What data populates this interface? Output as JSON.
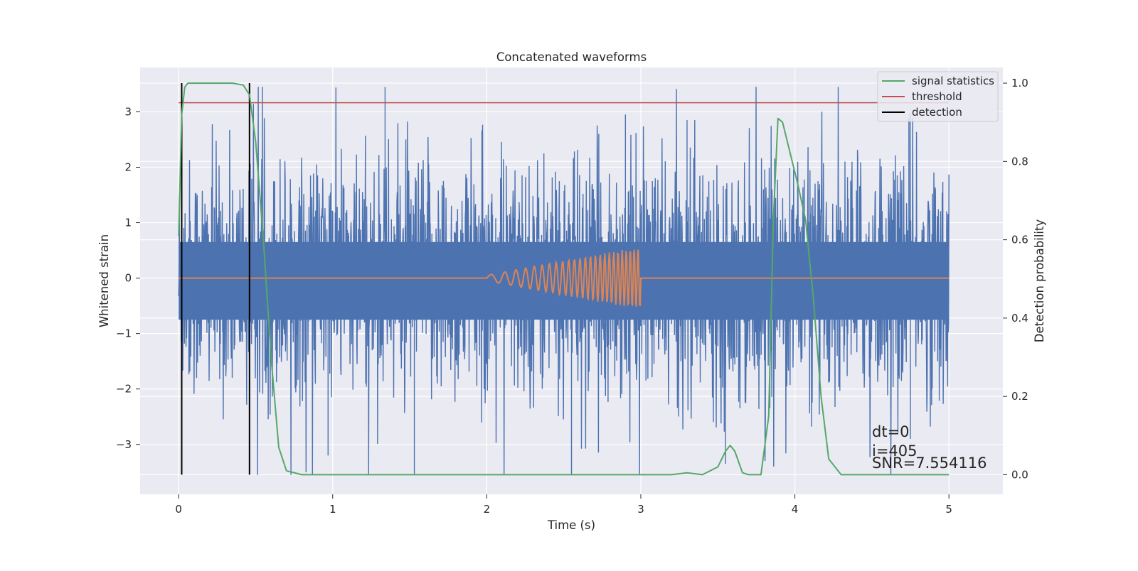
{
  "chart_data": {
    "type": "line",
    "title": "Concatenated waveforms",
    "xlabel": "Time (s)",
    "ylabel_left": "Whitened strain",
    "ylabel_right": "Detection probability",
    "xlim": [
      -0.25,
      5.35
    ],
    "ylim_left": [
      -3.9,
      3.8
    ],
    "ylim_right": [
      -0.05,
      1.04
    ],
    "x_ticks": [
      0,
      1,
      2,
      3,
      4,
      5
    ],
    "x_tick_labels": [
      "0",
      "1",
      "2",
      "3",
      "4",
      "5"
    ],
    "y_left_ticks": [
      -3,
      -2,
      -1,
      0,
      1,
      2,
      3
    ],
    "y_left_tick_labels": [
      "−3",
      "−2",
      "−1",
      "0",
      "1",
      "2",
      "3"
    ],
    "y_right_ticks": [
      0.0,
      0.2,
      0.4,
      0.6,
      0.8,
      1.0
    ],
    "y_right_tick_labels": [
      "0.0",
      "0.2",
      "0.4",
      "0.6",
      "0.8",
      "1.0"
    ],
    "grid": true,
    "legend_position": "top-right",
    "style": {
      "background": "#eaeaf2",
      "strain_color": "#4c72b0",
      "injection_color": "#dd8452",
      "signal_color": "#55a868",
      "threshold_color": "#c44e52",
      "detection_color": "#000000"
    },
    "series": [
      {
        "name": "",
        "axis": "left",
        "kind": "noise",
        "x_range": [
          0,
          5
        ],
        "band_envelope_approx": [
          -0.75,
          0.65
        ],
        "max": 3.45,
        "min": -3.55,
        "color": "#4c72b0"
      },
      {
        "name": "",
        "axis": "left",
        "kind": "chirp",
        "x_range": [
          0,
          5
        ],
        "chirp_range": [
          2.0,
          3.0
        ],
        "amplitude_end": 0.57,
        "cycles": 25,
        "color": "#dd8452"
      },
      {
        "name": "signal statistics",
        "axis": "right",
        "x": [
          0.0,
          0.01,
          0.02,
          0.04,
          0.06,
          0.1,
          0.2,
          0.35,
          0.42,
          0.46,
          0.5,
          0.55,
          0.6,
          0.65,
          0.7,
          0.8,
          1.5,
          2.5,
          3.2,
          3.3,
          3.4,
          3.5,
          3.55,
          3.58,
          3.61,
          3.66,
          3.7,
          3.78,
          3.83,
          3.86,
          3.89,
          3.92,
          3.97,
          4.02,
          4.07,
          4.12,
          4.17,
          4.22,
          4.3,
          5.0
        ],
        "y": [
          0.61,
          0.76,
          0.92,
          0.99,
          1.0,
          1.0,
          1.0,
          1.0,
          0.995,
          0.97,
          0.85,
          0.6,
          0.3,
          0.07,
          0.01,
          0.0,
          0.0,
          0.0,
          0.0,
          0.005,
          0.0,
          0.02,
          0.06,
          0.075,
          0.06,
          0.005,
          0.0,
          0.0,
          0.15,
          0.65,
          0.91,
          0.9,
          0.82,
          0.74,
          0.65,
          0.45,
          0.2,
          0.04,
          0.0,
          0.0
        ]
      },
      {
        "name": "threshold",
        "axis": "right",
        "x": [
          0,
          5
        ],
        "y": [
          0.95,
          0.95
        ]
      },
      {
        "name": "detection",
        "axis": "right",
        "vlines": [
          0.02,
          0.46
        ],
        "y_span": [
          0.0,
          1.0
        ]
      }
    ],
    "annotations": [
      "dt=0",
      "i=405",
      "SNR=7.554116"
    ]
  }
}
